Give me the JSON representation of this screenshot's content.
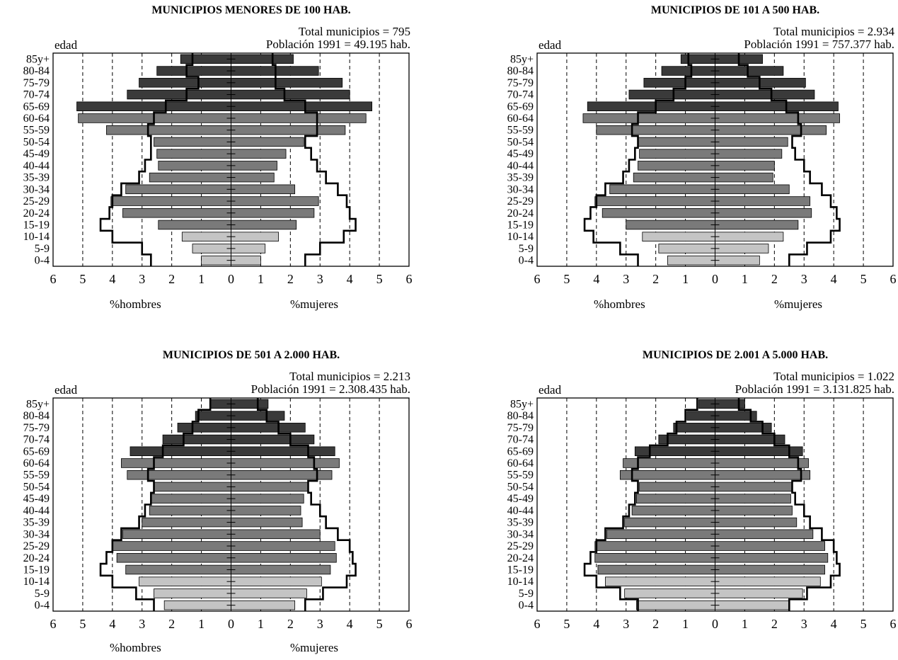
{
  "age_labels": [
    "85y+",
    "80-84",
    "75-79",
    "70-74",
    "65-69",
    "60-64",
    "55-59",
    "50-54",
    "45-49",
    "40-44",
    "35-39",
    "30-34",
    "25-29",
    "20-24",
    "15-19",
    "10-14",
    "5-9",
    "0-4"
  ],
  "x_ticks": [
    "6",
    "5",
    "4",
    "3",
    "2",
    "1",
    "0",
    "1",
    "2",
    "3",
    "4",
    "5",
    "6"
  ],
  "y_axis_label": "edad",
  "x_label_left": "%hombres",
  "x_label_right": "%mujeres",
  "colors": {
    "old": "#3a3a3a",
    "middle": "#7a7a7a",
    "young": "#c4c4c4",
    "outline": "#000000"
  },
  "chart_data": [
    {
      "type": "bar",
      "title": "MUNICIPIOS MENORES DE 100 HAB.",
      "total": "Total municipios = 795",
      "population": "Población 1991 = 49.195 hab.",
      "xlim": [
        -6,
        6
      ],
      "categories": [
        "85y+",
        "80-84",
        "75-79",
        "70-74",
        "65-69",
        "60-64",
        "55-59",
        "50-54",
        "45-49",
        "40-44",
        "35-39",
        "30-34",
        "25-29",
        "20-24",
        "15-19",
        "10-14",
        "5-9",
        "0-4"
      ],
      "series": [
        {
          "name": "%hombres",
          "values": [
            1.7,
            2.5,
            3.1,
            3.5,
            5.2,
            5.15,
            4.2,
            2.6,
            2.5,
            2.45,
            2.75,
            3.55,
            4.05,
            3.65,
            2.45,
            1.65,
            1.3,
            1.0
          ]
        },
        {
          "name": "%mujeres",
          "values": [
            2.1,
            2.95,
            3.75,
            4.0,
            4.75,
            4.55,
            3.85,
            2.45,
            1.85,
            1.55,
            1.45,
            2.15,
            2.95,
            2.8,
            2.2,
            1.6,
            1.15,
            1.0
          ]
        }
      ],
      "reference_outline": {
        "hombres": [
          1.3,
          1.5,
          1.1,
          1.5,
          2.2,
          2.6,
          2.8,
          2.7,
          2.7,
          2.9,
          3.1,
          3.7,
          4.0,
          4.1,
          4.4,
          4.0,
          3.0,
          2.7
        ],
        "mujeres": [
          1.4,
          1.5,
          1.5,
          1.8,
          2.5,
          2.9,
          2.9,
          2.5,
          2.7,
          2.9,
          3.2,
          3.6,
          3.9,
          4.0,
          4.2,
          3.8,
          3.0,
          2.5
        ]
      }
    },
    {
      "type": "bar",
      "title": "MUNICIPIOS DE 101 A 500 HAB.",
      "total": "Total municipios = 2.934",
      "population": "Población 1991 = 757.377 hab.",
      "xlim": [
        -6,
        6
      ],
      "categories": [
        "85y+",
        "80-84",
        "75-79",
        "70-74",
        "65-69",
        "60-64",
        "55-59",
        "50-54",
        "45-49",
        "40-44",
        "35-39",
        "30-34",
        "25-29",
        "20-24",
        "15-19",
        "10-14",
        "5-9",
        "0-4"
      ],
      "series": [
        {
          "name": "%hombres",
          "values": [
            1.15,
            1.8,
            2.4,
            2.9,
            4.3,
            4.45,
            4.0,
            2.6,
            2.55,
            2.6,
            2.75,
            3.55,
            4.05,
            3.8,
            3.0,
            2.45,
            1.9,
            1.6
          ]
        },
        {
          "name": "%mujeres",
          "values": [
            1.6,
            2.3,
            3.05,
            3.35,
            4.15,
            4.2,
            3.75,
            2.45,
            2.25,
            2.0,
            1.95,
            2.5,
            3.2,
            3.25,
            2.8,
            2.3,
            1.8,
            1.5
          ]
        }
      ],
      "reference_outline": {
        "hombres": [
          0.9,
          0.8,
          1.0,
          1.4,
          2.0,
          2.6,
          2.8,
          2.6,
          2.7,
          2.9,
          3.1,
          3.7,
          4.0,
          4.2,
          4.4,
          4.1,
          3.2,
          2.6
        ],
        "mujeres": [
          0.8,
          1.1,
          1.5,
          1.9,
          2.4,
          2.8,
          2.9,
          2.6,
          2.7,
          3.0,
          3.2,
          3.6,
          3.9,
          4.1,
          4.2,
          3.9,
          3.1,
          2.5
        ]
      }
    },
    {
      "type": "bar",
      "title": "MUNICIPIOS DE 501 A 2.000 HAB.",
      "total": "Total municipios = 2.213",
      "population": "Población 1991 = 2.308.435 hab.",
      "xlim": [
        -6,
        6
      ],
      "categories": [
        "85y+",
        "80-84",
        "75-79",
        "70-74",
        "65-69",
        "60-64",
        "55-59",
        "50-54",
        "45-49",
        "40-44",
        "35-39",
        "30-34",
        "25-29",
        "20-24",
        "15-19",
        "10-14",
        "5-9",
        "0-4"
      ],
      "series": [
        {
          "name": "%hombres",
          "values": [
            0.7,
            1.2,
            1.8,
            2.3,
            3.4,
            3.7,
            3.5,
            2.6,
            2.7,
            2.75,
            3.0,
            3.65,
            4.0,
            3.85,
            3.55,
            3.1,
            2.6,
            2.25
          ]
        },
        {
          "name": "%mujeres",
          "values": [
            1.25,
            1.8,
            2.5,
            2.8,
            3.5,
            3.65,
            3.4,
            2.6,
            2.45,
            2.35,
            2.4,
            3.0,
            3.5,
            3.55,
            3.35,
            3.05,
            2.55,
            2.15
          ]
        }
      ],
      "reference_outline": {
        "hombres": [
          0.7,
          1.1,
          1.3,
          1.6,
          2.3,
          2.6,
          2.8,
          2.6,
          2.7,
          2.9,
          3.1,
          3.7,
          4.0,
          4.2,
          4.4,
          4.0,
          3.2,
          2.6
        ],
        "mujeres": [
          0.9,
          1.2,
          1.6,
          2.0,
          2.6,
          2.8,
          2.9,
          2.6,
          2.7,
          3.0,
          3.2,
          3.6,
          4.0,
          4.1,
          4.2,
          3.9,
          3.1,
          2.5
        ]
      }
    },
    {
      "type": "bar",
      "title": "MUNICIPIOS DE 2.001 A 5.000 HAB.",
      "total": "Total municipios = 1.022",
      "population": "Población 1991 = 3.131.825 hab.",
      "xlim": [
        -6,
        6
      ],
      "categories": [
        "85y+",
        "80-84",
        "75-79",
        "70-74",
        "65-69",
        "60-64",
        "55-59",
        "50-54",
        "45-49",
        "40-44",
        "35-39",
        "30-34",
        "25-29",
        "20-24",
        "15-19",
        "10-14",
        "5-9",
        "0-4"
      ],
      "series": [
        {
          "name": "%hombres",
          "values": [
            0.55,
            0.95,
            1.4,
            1.9,
            2.7,
            3.1,
            3.2,
            2.55,
            2.65,
            2.8,
            3.05,
            3.65,
            4.05,
            4.05,
            3.95,
            3.7,
            3.05,
            2.65
          ]
        },
        {
          "name": "%mujeres",
          "values": [
            1.0,
            1.4,
            1.9,
            2.35,
            2.95,
            3.15,
            3.2,
            2.6,
            2.55,
            2.6,
            2.75,
            3.3,
            3.7,
            3.8,
            3.7,
            3.55,
            2.95,
            2.5
          ]
        }
      ],
      "reference_outline": {
        "hombres": [
          0.6,
          1.0,
          1.3,
          1.6,
          2.2,
          2.6,
          2.8,
          2.6,
          2.7,
          2.9,
          3.1,
          3.7,
          4.0,
          4.2,
          4.4,
          4.0,
          3.2,
          2.6
        ],
        "mujeres": [
          0.8,
          1.2,
          1.6,
          2.0,
          2.5,
          2.8,
          2.9,
          2.6,
          2.7,
          3.0,
          3.2,
          3.6,
          4.0,
          4.1,
          4.2,
          3.9,
          3.1,
          2.5
        ]
      }
    }
  ]
}
